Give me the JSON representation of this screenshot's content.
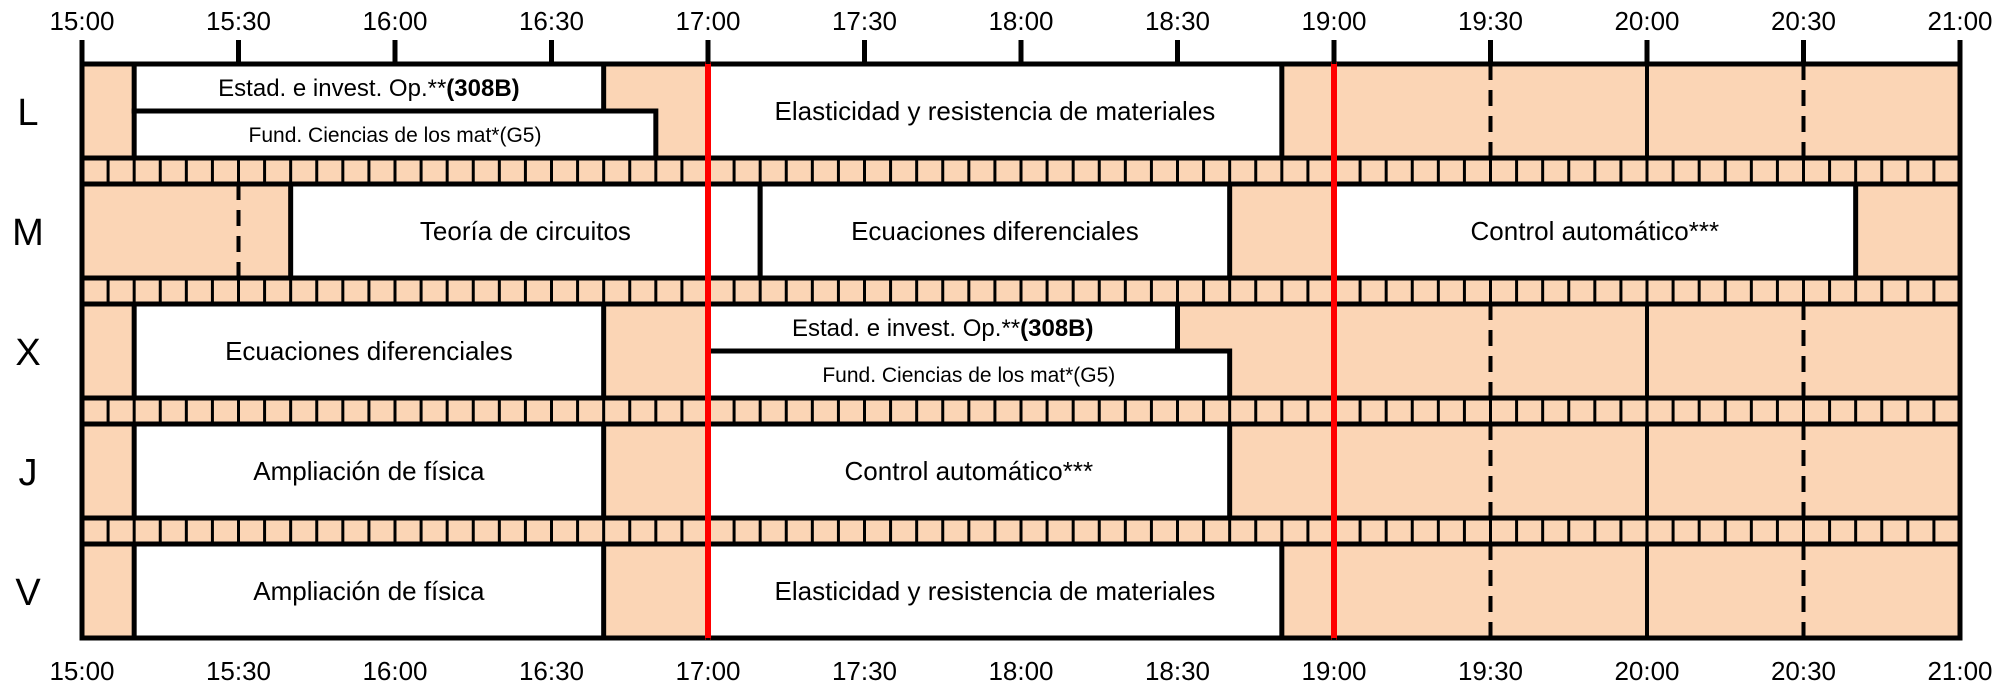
{
  "timeline": {
    "start": "15:00",
    "end": "21:00",
    "ticks": [
      "15:00",
      "15:30",
      "16:00",
      "16:30",
      "17:00",
      "17:30",
      "18:00",
      "18:30",
      "19:00",
      "19:30",
      "20:00",
      "20:30",
      "21:00"
    ]
  },
  "days": [
    {
      "id": "L",
      "label": "L"
    },
    {
      "id": "M",
      "label": "M"
    },
    {
      "id": "X",
      "label": "X"
    },
    {
      "id": "J",
      "label": "J"
    },
    {
      "id": "V",
      "label": "V"
    }
  ],
  "markers": [
    "17:00",
    "19:00"
  ],
  "courses": [
    {
      "day": "L",
      "lane": "top",
      "start": "15:10",
      "end": "16:40",
      "label": "Estad. e invest. Op.**",
      "room": "(308B)"
    },
    {
      "day": "L",
      "lane": "bottom",
      "start": "15:10",
      "end": "16:50",
      "label": "Fund. Ciencias de los mat*(G5)"
    },
    {
      "day": "L",
      "lane": "full",
      "start": "17:00",
      "end": "18:50",
      "label": "Elasticidad y resistencia de materiales"
    },
    {
      "day": "M",
      "lane": "full",
      "start": "15:40",
      "end": "17:10",
      "label": "Teoría de circuitos"
    },
    {
      "day": "M",
      "lane": "full",
      "start": "17:10",
      "end": "18:40",
      "label": "Ecuaciones diferenciales"
    },
    {
      "day": "M",
      "lane": "full",
      "start": "19:00",
      "end": "20:40",
      "label": "Control automático***"
    },
    {
      "day": "X",
      "lane": "full",
      "start": "15:10",
      "end": "16:40",
      "label": "Ecuaciones diferenciales"
    },
    {
      "day": "X",
      "lane": "top",
      "start": "17:00",
      "end": "18:30",
      "label": "Estad. e invest. Op.**",
      "room": "(308B)"
    },
    {
      "day": "X",
      "lane": "bottom",
      "start": "17:00",
      "end": "18:40",
      "label": "Fund. Ciencias de los mat*(G5)"
    },
    {
      "day": "J",
      "lane": "full",
      "start": "15:10",
      "end": "16:40",
      "label": "Ampliación de física"
    },
    {
      "day": "J",
      "lane": "full",
      "start": "17:00",
      "end": "18:40",
      "label": "Control automático***"
    },
    {
      "day": "V",
      "lane": "full",
      "start": "15:10",
      "end": "16:40",
      "label": "Ampliación de física"
    },
    {
      "day": "V",
      "lane": "full",
      "start": "17:00",
      "end": "18:50",
      "label": "Elasticidad y resistencia de materiales"
    }
  ],
  "colors": {
    "background_fill": "#fbd5b5",
    "course_fill": "#ffffff",
    "outline": "#000000",
    "marker": "#ff0000"
  }
}
